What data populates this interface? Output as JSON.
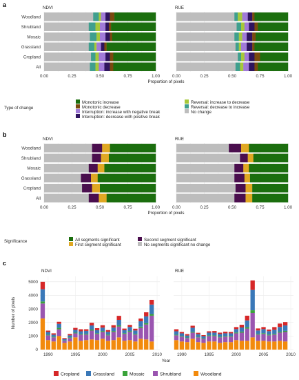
{
  "panel_labels": [
    "a",
    "b",
    "c"
  ],
  "chart_data": [
    {
      "type": "bar",
      "orientation": "horizontal",
      "stacked": true,
      "panel": "a",
      "facets": [
        "NDVI",
        "RUE"
      ],
      "categories": [
        "Woodland",
        "Shrubland",
        "Mosaic",
        "Grassland",
        "Cropland",
        "All"
      ],
      "xlabel": "Proportion of pixels",
      "xlim": [
        0,
        1
      ],
      "xticks": [
        "0.00",
        "0.25",
        "0.50",
        "0.75",
        "1.00"
      ],
      "legend_title": "Type of change",
      "legend_position": "bottom",
      "series_order": [
        "No change",
        "Reversal: decrease to increase",
        "Reversal: increase to decrease",
        "Interruption: increase with negative break",
        "Interruption: decrease with positive break",
        "Monotonic decrease",
        "Monotonic increase"
      ],
      "legend": [
        {
          "name": "Monotonic increase",
          "color": "#1b6e0e"
        },
        {
          "name": "Monotonic decrease",
          "color": "#7a4a0e"
        },
        {
          "name": "Interruption: increase with negative break",
          "color": "#a07ad8"
        },
        {
          "name": "Interruption: decrease with positive break",
          "color": "#2e145e"
        },
        {
          "name": "Reversal: increase to decrease",
          "color": "#a6c83a"
        },
        {
          "name": "Reversal: decrease to increase",
          "color": "#3f9f8e"
        },
        {
          "name": "No change",
          "color": "#bdbdbd"
        }
      ],
      "values": {
        "NDVI": {
          "Woodland": [
            0.44,
            0.05,
            0.02,
            0.04,
            0.04,
            0.04,
            0.37
          ],
          "Shrubland": [
            0.4,
            0.06,
            0.04,
            0.05,
            0.03,
            0.02,
            0.4
          ],
          "Mosaic": [
            0.41,
            0.06,
            0.03,
            0.05,
            0.04,
            0.02,
            0.39
          ],
          "Grassland": [
            0.4,
            0.05,
            0.02,
            0.04,
            0.03,
            0.02,
            0.44
          ],
          "Cropland": [
            0.42,
            0.04,
            0.03,
            0.06,
            0.04,
            0.03,
            0.38
          ],
          "All": [
            0.41,
            0.05,
            0.03,
            0.05,
            0.05,
            0.03,
            0.38
          ]
        },
        "RUE": {
          "Woodland": [
            0.52,
            0.03,
            0.04,
            0.05,
            0.04,
            0.02,
            0.3
          ],
          "Shrubland": [
            0.54,
            0.04,
            0.03,
            0.04,
            0.05,
            0.03,
            0.27
          ],
          "Mosaic": [
            0.52,
            0.04,
            0.03,
            0.04,
            0.05,
            0.03,
            0.29
          ],
          "Grassland": [
            0.53,
            0.03,
            0.02,
            0.05,
            0.05,
            0.02,
            0.3
          ],
          "Cropland": [
            0.55,
            0.03,
            0.03,
            0.04,
            0.05,
            0.05,
            0.25
          ],
          "All": [
            0.53,
            0.04,
            0.03,
            0.05,
            0.05,
            0.03,
            0.27
          ]
        }
      }
    },
    {
      "type": "bar",
      "orientation": "horizontal",
      "stacked": true,
      "panel": "b",
      "facets": [
        "NDVI",
        "RUE"
      ],
      "categories": [
        "Woodland",
        "Shrubland",
        "Mosaic",
        "Grassland",
        "Cropland",
        "All"
      ],
      "xlabel": "Proportion of pixels",
      "xlim": [
        0,
        1
      ],
      "xticks": [
        "0.00",
        "0.25",
        "0.50",
        "0.75",
        "1.00"
      ],
      "legend_title": "Significance",
      "legend_position": "bottom",
      "series_order": [
        "No segments significant no change",
        "Second segment significant",
        "First segment significant",
        "All segments significant"
      ],
      "legend": [
        {
          "name": "All segments significant",
          "color": "#1b6e0e"
        },
        {
          "name": "First segment significant",
          "color": "#e0a823"
        },
        {
          "name": "Second segment significant",
          "color": "#4a0e4e"
        },
        {
          "name": "No segments significant no change",
          "color": "#bdbdbd"
        }
      ],
      "values": {
        "NDVI": {
          "Woodland": [
            0.43,
            0.09,
            0.07,
            0.41
          ],
          "Shrubland": [
            0.43,
            0.08,
            0.07,
            0.42
          ],
          "Mosaic": [
            0.4,
            0.08,
            0.06,
            0.46
          ],
          "Grassland": [
            0.33,
            0.09,
            0.06,
            0.52
          ],
          "Cropland": [
            0.34,
            0.09,
            0.07,
            0.5
          ],
          "All": [
            0.4,
            0.09,
            0.07,
            0.44
          ]
        },
        "RUE": {
          "Woodland": [
            0.47,
            0.11,
            0.07,
            0.35
          ],
          "Shrubland": [
            0.57,
            0.07,
            0.05,
            0.31
          ],
          "Mosaic": [
            0.52,
            0.08,
            0.05,
            0.35
          ],
          "Grassland": [
            0.52,
            0.09,
            0.05,
            0.34
          ],
          "Cropland": [
            0.53,
            0.09,
            0.06,
            0.32
          ],
          "All": [
            0.52,
            0.1,
            0.06,
            0.32
          ]
        }
      }
    },
    {
      "type": "bar",
      "orientation": "vertical",
      "stacked": true,
      "panel": "c",
      "facets": [
        "NDVI",
        "RUE"
      ],
      "xlabel": "Year",
      "ylabel": "Number of pixels",
      "ylim": [
        0,
        5400
      ],
      "yticks": [
        0,
        1000,
        2000,
        3000,
        4000,
        5000
      ],
      "xticks": [
        1990,
        1995,
        2000,
        2005,
        2010
      ],
      "xlim": [
        1988.5,
        2010.5
      ],
      "years": [
        1989,
        1990,
        1991,
        1992,
        1993,
        1994,
        1995,
        1996,
        1997,
        1998,
        1999,
        2000,
        2001,
        2002,
        2003,
        2004,
        2005,
        2006,
        2007,
        2008,
        2009
      ],
      "legend_position": "bottom",
      "series_order": [
        "Woodland",
        "Shrubland",
        "Mosaic",
        "Grassland",
        "Cropland"
      ],
      "legend": [
        {
          "name": "Cropland",
          "color": "#d62728"
        },
        {
          "name": "Grassland",
          "color": "#3a78b8"
        },
        {
          "name": "Mosaic",
          "color": "#3aa33a"
        },
        {
          "name": "Shrubland",
          "color": "#9a55b0"
        },
        {
          "name": "Woodland",
          "color": "#f28a0c"
        }
      ],
      "values": {
        "NDVI": {
          "Woodland": [
            2300,
            700,
            600,
            1000,
            500,
            600,
            900,
            650,
            700,
            750,
            700,
            800,
            650,
            700,
            900,
            650,
            700,
            600,
            800,
            750,
            600
          ],
          "Shrubland": [
            1100,
            350,
            300,
            500,
            150,
            250,
            300,
            450,
            400,
            650,
            450,
            500,
            400,
            600,
            800,
            500,
            600,
            500,
            800,
            1100,
            1900
          ],
          "Mosaic": [
            150,
            50,
            50,
            100,
            30,
            50,
            50,
            50,
            60,
            80,
            60,
            70,
            60,
            70,
            90,
            60,
            70,
            60,
            90,
            100,
            120
          ],
          "Grassland": [
            900,
            200,
            150,
            300,
            100,
            150,
            200,
            200,
            220,
            300,
            220,
            250,
            200,
            250,
            400,
            220,
            300,
            250,
            400,
            500,
            700
          ],
          "Cropland": [
            550,
            100,
            100,
            150,
            70,
            100,
            150,
            150,
            120,
            200,
            150,
            180,
            130,
            180,
            300,
            120,
            150,
            130,
            200,
            300,
            350
          ]
        },
        "RUE": {
          "Woodland": [
            700,
            600,
            550,
            800,
            550,
            500,
            600,
            600,
            500,
            550,
            550,
            700,
            650,
            650,
            900,
            650,
            650,
            600,
            600,
            650,
            600
          ],
          "Shrubland": [
            350,
            350,
            300,
            450,
            350,
            300,
            400,
            400,
            400,
            400,
            400,
            500,
            600,
            900,
            1800,
            450,
            500,
            450,
            500,
            600,
            700
          ],
          "Mosaic": [
            50,
            50,
            40,
            60,
            40,
            40,
            50,
            50,
            50,
            50,
            50,
            60,
            80,
            100,
            200,
            60,
            60,
            60,
            60,
            70,
            80
          ],
          "Grassland": [
            250,
            200,
            150,
            300,
            200,
            150,
            200,
            200,
            200,
            200,
            200,
            250,
            300,
            500,
            1500,
            250,
            300,
            250,
            300,
            350,
            400
          ],
          "Cropland": [
            150,
            100,
            100,
            150,
            100,
            80,
            100,
            120,
            100,
            120,
            100,
            150,
            200,
            350,
            700,
            150,
            150,
            120,
            200,
            250,
            250
          ]
        }
      }
    }
  ]
}
